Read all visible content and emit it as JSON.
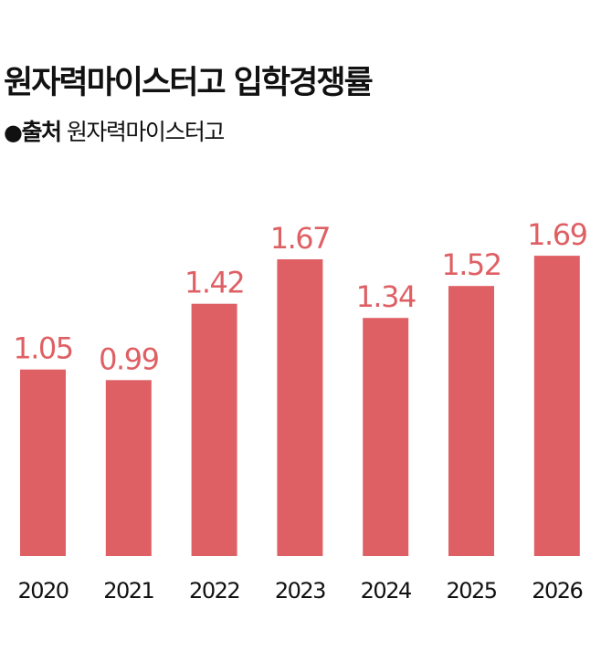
{
  "header": {
    "title": "원자력마이스터고 입학경쟁률",
    "source_bullet": "●",
    "source_label": "출처",
    "source_value": "원자력마이스터고"
  },
  "chart_data": {
    "type": "bar",
    "title": "원자력마이스터고 입학경쟁률",
    "xlabel": "",
    "ylabel": "",
    "categories": [
      "2020",
      "2021",
      "2022",
      "2023",
      "2024",
      "2025",
      "2026"
    ],
    "values": [
      1.05,
      0.99,
      1.42,
      1.67,
      1.34,
      1.52,
      1.69
    ],
    "value_labels": [
      "1.05",
      "0.99",
      "1.42",
      "1.67",
      "1.34",
      "1.52",
      "1.69"
    ],
    "ylim": [
      0,
      2.04
    ],
    "grid": false,
    "legend": "none",
    "bar_color": "#df6064",
    "label_color": "#df6064",
    "tick_color": "#111111"
  }
}
